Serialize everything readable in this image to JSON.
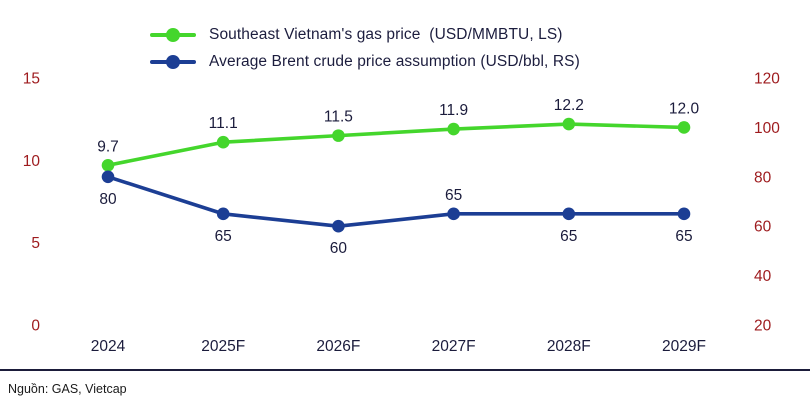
{
  "chart_data": {
    "type": "line",
    "title": "",
    "categories": [
      "2024",
      "2025F",
      "2026F",
      "2027F",
      "2028F",
      "2029F"
    ],
    "series": [
      {
        "name": "Southeast Vietnam's gas price  (USD/MMBTU, LS)",
        "axis": "left",
        "color": "#44d62c",
        "values": [
          9.7,
          11.1,
          11.5,
          11.9,
          12.2,
          12.0
        ],
        "labels": [
          "9.7",
          "11.1",
          "11.5",
          "11.9",
          "12.2",
          "12.0"
        ],
        "label_side": [
          "above",
          "above",
          "above",
          "above",
          "above",
          "above"
        ]
      },
      {
        "name": "Average Brent crude price assumption (USD/bbl, RS)",
        "axis": "right",
        "color": "#1c3e94",
        "values": [
          80,
          65,
          60,
          65,
          65,
          65
        ],
        "labels": [
          "80",
          "65",
          "60",
          "65",
          "65",
          "65"
        ],
        "label_side": [
          "below",
          "below",
          "below",
          "above",
          "below",
          "below"
        ]
      }
    ],
    "left_axis": {
      "ticks": [
        0,
        5,
        10,
        15
      ],
      "min": 0,
      "max": 15
    },
    "right_axis": {
      "ticks": [
        20,
        40,
        60,
        80,
        100,
        120
      ],
      "min": 20,
      "max": 120
    },
    "legend_position": "top",
    "grid": false
  },
  "colors": {
    "axis_tick": "#9e1b1e",
    "text_dark": "#1b1c3c",
    "series_green": "#44d62c",
    "series_blue": "#1c3e94"
  },
  "footer": {
    "source": "Nguồn: GAS, Vietcap"
  }
}
